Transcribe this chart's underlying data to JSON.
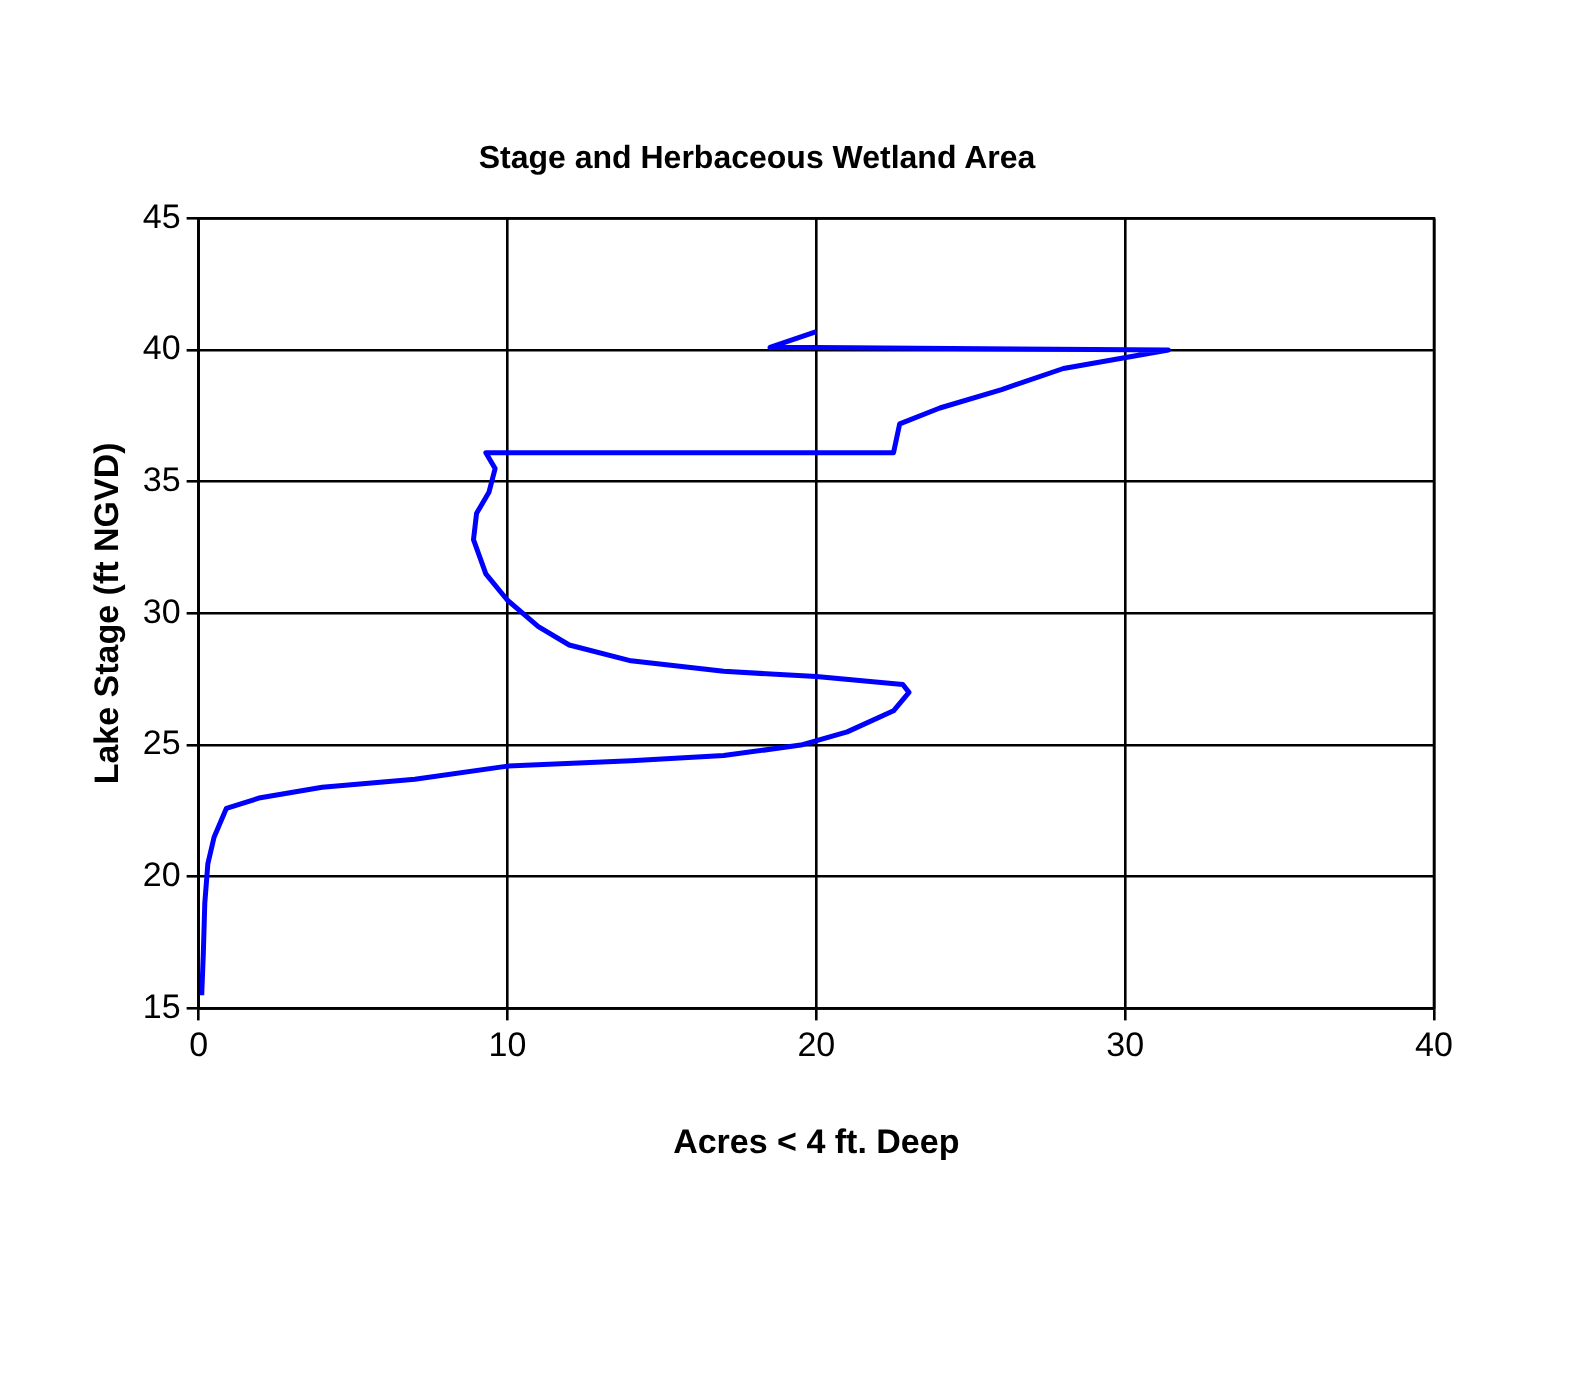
{
  "chart_data": {
    "type": "line",
    "title": "Stage and Herbaceous Wetland Area",
    "xlabel": "Acres < 4 ft. Deep",
    "ylabel": "Lake Stage (ft NGVD)",
    "xlim": [
      0,
      40
    ],
    "xticks": [
      0,
      10,
      20,
      30,
      40
    ],
    "ylim": [
      15,
      45
    ],
    "yticks": [
      15,
      20,
      25,
      30,
      35,
      40,
      45
    ],
    "grid": true,
    "legend": false,
    "marker": "none",
    "line_style": "solid",
    "series": [
      {
        "color": "#0000ff",
        "x": [
          0.1,
          0.15,
          0.2,
          0.3,
          0.5,
          0.9,
          2,
          4,
          7,
          10,
          14,
          17,
          19.5,
          21,
          22.5,
          23,
          22.8,
          20,
          17,
          14,
          12,
          11,
          10,
          9.3,
          8.9,
          9,
          9.4,
          9.6,
          9.3,
          22.5,
          22.7,
          24,
          26,
          28,
          31.4,
          20,
          18.5,
          20
        ],
        "values": [
          15.5,
          17,
          19,
          20.5,
          21.5,
          22.6,
          23,
          23.4,
          23.7,
          24.2,
          24.4,
          24.6,
          25,
          25.5,
          26.3,
          27,
          27.3,
          27.6,
          27.8,
          28.2,
          28.8,
          29.5,
          30.5,
          31.5,
          32.8,
          33.8,
          34.6,
          35.5,
          36.1,
          36.1,
          37.2,
          37.8,
          38.5,
          39.3,
          40,
          40.1,
          40.1,
          40.7
        ]
      }
    ]
  }
}
